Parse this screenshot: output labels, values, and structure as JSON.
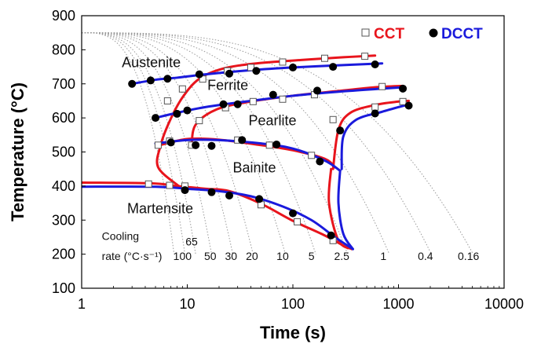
{
  "chart_data": {
    "type": "line",
    "title": "",
    "xlabel": "Time (s)",
    "ylabel": "Temperature (°C)",
    "x_scale": "log",
    "xlim": [
      1,
      10000
    ],
    "ylim": [
      100,
      900
    ],
    "x_ticks": [
      "1",
      "10",
      "100",
      "1000",
      "10000"
    ],
    "y_ticks": [
      "100",
      "200",
      "300",
      "400",
      "500",
      "600",
      "700",
      "800",
      "900"
    ],
    "grid": false,
    "legend": {
      "position": "top-right",
      "entries": [
        {
          "label": "CCT",
          "marker": "open-square",
          "color": "#e8141c"
        },
        {
          "label": "DCCT",
          "marker": "filled-circle",
          "color": "#1a1adc"
        }
      ]
    },
    "colors": {
      "cct": "#e8141c",
      "dcct": "#1a1adc",
      "cooling": "#9a9a9a"
    },
    "phase_labels": [
      {
        "text": "Austenite",
        "x": 2.4,
        "y": 749
      },
      {
        "text": "Ferrite",
        "x": 15.5,
        "y": 682
      },
      {
        "text": "Pearlite",
        "x": 38,
        "y": 578
      },
      {
        "text": "Bainite",
        "x": 27,
        "y": 440
      },
      {
        "text": "Martensite",
        "x": 2.7,
        "y": 320
      }
    ],
    "cooling_rate_title": [
      "Cooling",
      "rate (°C·s⁻¹)"
    ],
    "cooling_rates": [
      {
        "label": "65",
        "x": 11,
        "y": 226
      },
      {
        "label": "100",
        "x": 9,
        "y": 183
      },
      {
        "label": "50",
        "x": 16.5,
        "y": 183
      },
      {
        "label": "30",
        "x": 26,
        "y": 183
      },
      {
        "label": "20",
        "x": 41,
        "y": 183
      },
      {
        "label": "10",
        "x": 80,
        "y": 183
      },
      {
        "label": "5",
        "x": 150,
        "y": 183
      },
      {
        "label": "2.5",
        "x": 290,
        "y": 183
      },
      {
        "label": "1",
        "x": 720,
        "y": 183
      },
      {
        "label": "0.4",
        "x": 1800,
        "y": 183
      },
      {
        "label": "0.16",
        "x": 4600,
        "y": 183
      }
    ],
    "cooling_curves": [
      {
        "t_end": 7.5,
        "T_end": 200
      },
      {
        "t_end": 9.5,
        "T_end": 200
      },
      {
        "t_end": 12,
        "T_end": 200
      },
      {
        "t_end": 17,
        "T_end": 200
      },
      {
        "t_end": 27,
        "T_end": 200
      },
      {
        "t_end": 42,
        "T_end": 200
      },
      {
        "t_end": 85,
        "T_end": 200
      },
      {
        "t_end": 165,
        "T_end": 200
      },
      {
        "t_end": 330,
        "T_end": 200
      },
      {
        "t_end": 820,
        "T_end": 200
      },
      {
        "t_end": 2050,
        "T_end": 200
      },
      {
        "t_end": 5100,
        "T_end": 200
      }
    ],
    "series": [
      {
        "name": "CCT",
        "color": "#e8141c",
        "marker": "open-square",
        "lines": [
          {
            "name": "ferrite-start",
            "points": [
              [
                8.3,
                400
              ],
              [
                5.3,
                455
              ],
              [
                5.6,
                520
              ],
              [
                6.8,
                590
              ],
              [
                9,
                660
              ],
              [
                13,
                715
              ],
              [
                22,
                745
              ],
              [
                45,
                760
              ],
              [
                120,
                770
              ],
              [
                300,
                778
              ],
              [
                600,
                783
              ]
            ]
          },
          {
            "name": "pearlite-start",
            "points": [
              [
                11,
                520
              ],
              [
                12,
                580
              ],
              [
                19,
                625
              ],
              [
                40,
                648
              ],
              [
                100,
                665
              ],
              [
                250,
                678
              ],
              [
                600,
                690
              ],
              [
                1100,
                694
              ]
            ]
          },
          {
            "name": "pearlite-finish",
            "points": [
              [
                240,
                450
              ],
              [
                270,
                565
              ],
              [
                350,
                615
              ],
              [
                600,
                638
              ],
              [
                1000,
                648
              ],
              [
                1250,
                650
              ]
            ]
          },
          {
            "name": "bainite-start",
            "points": [
              [
                5.5,
                520
              ],
              [
                10,
                538
              ],
              [
                20,
                536
              ],
              [
                50,
                520
              ],
              [
                100,
                505
              ],
              [
                200,
                480
              ],
              [
                250,
                455
              ]
            ]
          },
          {
            "name": "bainite-finish",
            "points": [
              [
                230,
                450
              ],
              [
                220,
                350
              ],
              [
                270,
                240
              ],
              [
                360,
                215
              ]
            ]
          },
          {
            "name": "martensite-start",
            "points": [
              [
                1,
                410
              ],
              [
                4.5,
                408
              ],
              [
                8,
                400
              ],
              [
                15,
                392
              ],
              [
                25,
                385
              ],
              [
                50,
                348
              ],
              [
                100,
                298
              ],
              [
                200,
                255
              ],
              [
                330,
                218
              ]
            ]
          }
        ],
        "points": [
          [
            4.3,
            406
          ],
          [
            6.8,
            402
          ],
          [
            9.5,
            400
          ],
          [
            5.3,
            520
          ],
          [
            6.8,
            532
          ],
          [
            11,
            520
          ],
          [
            6.5,
            650
          ],
          [
            9,
            685
          ],
          [
            13,
            592
          ],
          [
            14,
            714
          ],
          [
            24,
            738
          ],
          [
            40,
            748
          ],
          [
            80,
            764
          ],
          [
            200,
            775
          ],
          [
            480,
            781
          ],
          [
            23,
            630
          ],
          [
            42,
            648
          ],
          [
            80,
            655
          ],
          [
            160,
            668
          ],
          [
            700,
            692
          ],
          [
            30,
            535
          ],
          [
            60,
            520
          ],
          [
            150,
            490
          ],
          [
            240,
            595
          ],
          [
            600,
            632
          ],
          [
            1100,
            648
          ],
          [
            50,
            345
          ],
          [
            110,
            295
          ],
          [
            240,
            240
          ]
        ]
      },
      {
        "name": "DCCT",
        "color": "#1a1adc",
        "marker": "filled-circle",
        "lines": [
          {
            "name": "ferrite-start",
            "points": [
              [
                3,
                700
              ],
              [
                5,
                712
              ],
              [
                8,
                718
              ],
              [
                15,
                728
              ],
              [
                40,
                740
              ],
              [
                100,
                748
              ],
              [
                300,
                755
              ],
              [
                700,
                760
              ]
            ]
          },
          {
            "name": "pearlite-start",
            "points": [
              [
                5,
                600
              ],
              [
                8,
                615
              ],
              [
                15,
                632
              ],
              [
                40,
                650
              ],
              [
                100,
                665
              ],
              [
                300,
                678
              ],
              [
                700,
                686
              ],
              [
                1100,
                690
              ]
            ]
          },
          {
            "name": "pearlite-finish",
            "points": [
              [
                290,
                450
              ],
              [
                300,
                545
              ],
              [
                400,
                595
              ],
              [
                700,
                618
              ],
              [
                1250,
                640
              ]
            ]
          },
          {
            "name": "bainite-start",
            "points": [
              [
                5,
                525
              ],
              [
                10,
                535
              ],
              [
                20,
                535
              ],
              [
                50,
                525
              ],
              [
                100,
                510
              ],
              [
                200,
                475
              ],
              [
                280,
                445
              ]
            ]
          },
          {
            "name": "bainite-finish",
            "points": [
              [
                280,
                445
              ],
              [
                270,
                350
              ],
              [
                300,
                260
              ],
              [
                370,
                215
              ]
            ]
          },
          {
            "name": "martensite-start",
            "points": [
              [
                1,
                398
              ],
              [
                5,
                398
              ],
              [
                10,
                392
              ],
              [
                20,
                385
              ],
              [
                40,
                370
              ],
              [
                80,
                340
              ],
              [
                150,
                300
              ],
              [
                250,
                250
              ],
              [
                370,
                215
              ]
            ]
          }
        ],
        "points": [
          [
            3,
            700
          ],
          [
            4.5,
            710
          ],
          [
            6.5,
            715
          ],
          [
            13,
            728
          ],
          [
            25,
            730
          ],
          [
            45,
            738
          ],
          [
            100,
            748
          ],
          [
            240,
            750
          ],
          [
            600,
            757
          ],
          [
            5,
            600
          ],
          [
            8,
            612
          ],
          [
            10,
            622
          ],
          [
            22,
            640
          ],
          [
            30,
            640
          ],
          [
            65,
            668
          ],
          [
            170,
            680
          ],
          [
            1100,
            686
          ],
          [
            7,
            528
          ],
          [
            12,
            520
          ],
          [
            17,
            518
          ],
          [
            33,
            535
          ],
          [
            70,
            522
          ],
          [
            180,
            472
          ],
          [
            280,
            563
          ],
          [
            600,
            613
          ],
          [
            1250,
            636
          ],
          [
            9.5,
            388
          ],
          [
            17,
            382
          ],
          [
            25,
            372
          ],
          [
            48,
            362
          ],
          [
            100,
            320
          ],
          [
            230,
            255
          ]
        ]
      }
    ]
  }
}
